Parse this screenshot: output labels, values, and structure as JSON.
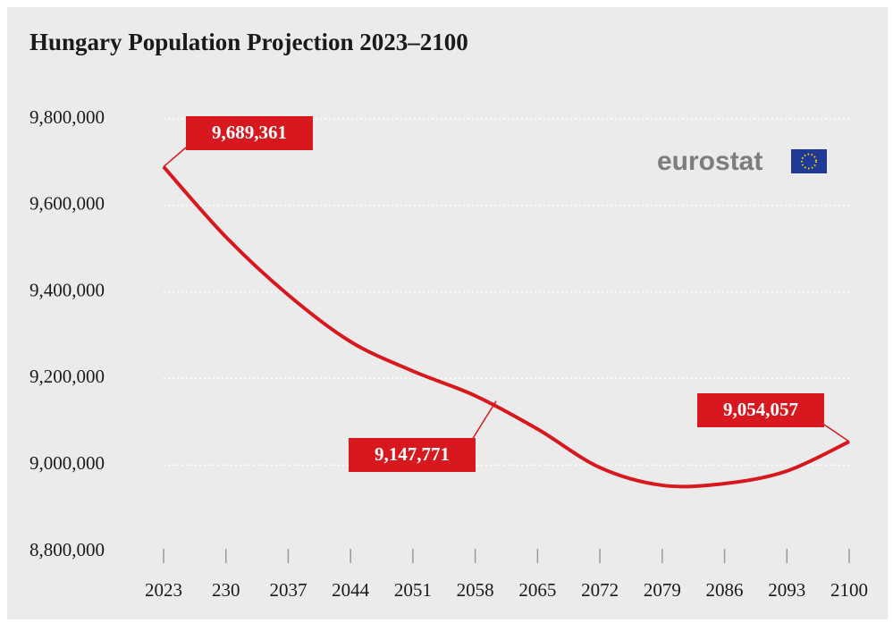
{
  "chart_data": {
    "type": "line",
    "title": "Hungary Population Projection 2023–2100",
    "logo": "eurostat",
    "categories": [
      "2023",
      "230",
      "2037",
      "2044",
      "2051",
      "2058",
      "2065",
      "2072",
      "2079",
      "2086",
      "2093",
      "2100"
    ],
    "series": [
      {
        "name": "Population",
        "color": "#d7191f",
        "values": [
          9689361,
          9527000,
          9393000,
          9285000,
          9217000,
          9160000,
          9083000,
          8994000,
          8953000,
          8957000,
          8986000,
          9054057
        ]
      }
    ],
    "ylim": [
      8800000,
      9800000
    ],
    "yticks": [
      {
        "value": 8800000,
        "label": "8,800,000"
      },
      {
        "value": 9000000,
        "label": "9,000,000"
      },
      {
        "value": 9200000,
        "label": "9,200,000"
      },
      {
        "value": 9400000,
        "label": "9,400,000"
      },
      {
        "value": 9600000,
        "label": "9,600,000"
      },
      {
        "value": 9800000,
        "label": "9,800,000"
      }
    ],
    "grid": true,
    "annotations": [
      {
        "label": "9,689,361",
        "value": 9689361
      },
      {
        "label": "9,147,771",
        "value": 9147771
      },
      {
        "label": "9,054,057",
        "value": 9054057
      }
    ]
  }
}
